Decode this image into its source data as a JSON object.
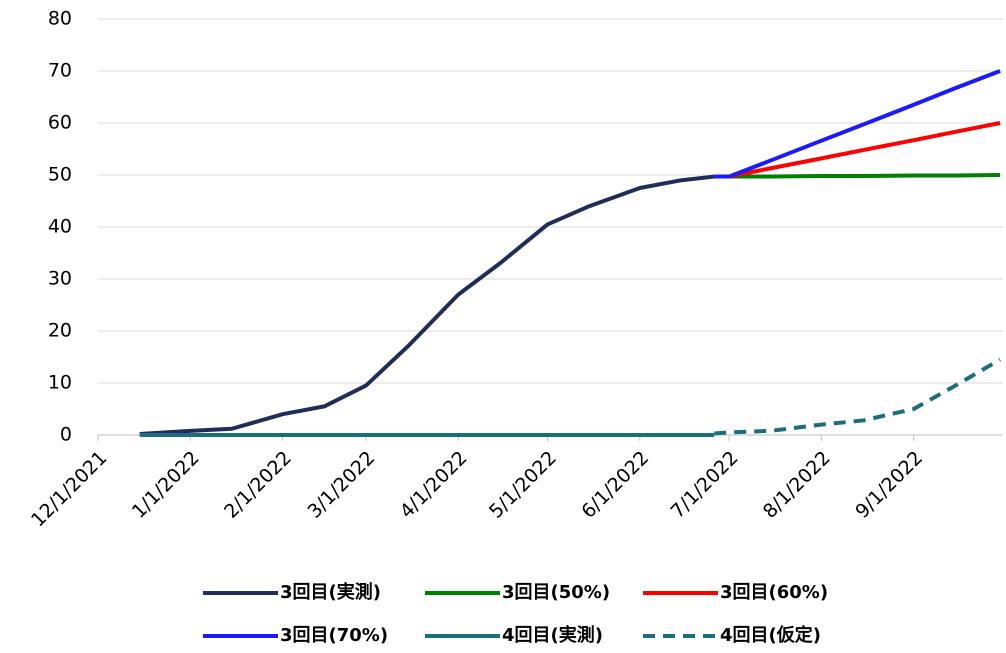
{
  "chart_data": {
    "type": "line",
    "x": [
      "12/15/2021",
      "1/1/2022",
      "1/15/2022",
      "2/1/2022",
      "2/15/2022",
      "3/1/2022",
      "3/15/2022",
      "4/1/2022",
      "4/15/2022",
      "5/1/2022",
      "5/15/2022",
      "6/1/2022",
      "6/15/2022",
      "6/26/2022",
      "7/1/2022",
      "7/15/2022",
      "8/1/2022",
      "8/15/2022",
      "9/1/2022",
      "9/15/2022",
      "9/30/2022"
    ],
    "series": [
      {
        "name": "3回目(実測)",
        "color": "#1f2d5a",
        "dashed": false,
        "values": [
          0.2,
          0.8,
          1.2,
          4,
          5.5,
          9.5,
          17,
          27,
          33,
          40.5,
          44,
          47.5,
          49,
          49.7,
          null,
          null,
          null,
          null,
          null,
          null,
          null
        ]
      },
      {
        "name": "3回目(50%)",
        "color": "#008000",
        "dashed": false,
        "values": [
          null,
          null,
          null,
          null,
          null,
          null,
          null,
          null,
          null,
          null,
          null,
          null,
          null,
          49.7,
          49.7,
          49.7,
          49.8,
          49.8,
          49.9,
          49.9,
          50
        ]
      },
      {
        "name": "3回目(60%)",
        "color": "#ff0000",
        "dashed": false,
        "values": [
          null,
          null,
          null,
          null,
          null,
          null,
          null,
          null,
          null,
          null,
          null,
          null,
          null,
          49.7,
          49.7,
          51.3,
          53.2,
          54.8,
          56.7,
          58.3,
          60
        ]
      },
      {
        "name": "3回目(70%)",
        "color": "#1a1aff",
        "dashed": false,
        "values": [
          null,
          null,
          null,
          null,
          null,
          null,
          null,
          null,
          null,
          null,
          null,
          null,
          null,
          49.7,
          49.7,
          52.8,
          56.6,
          59.7,
          63.5,
          66.7,
          70
        ]
      },
      {
        "name": "4回目(実測)",
        "color": "#1b6e7e",
        "dashed": false,
        "values": [
          0,
          0,
          0,
          0,
          0,
          0,
          0,
          0,
          0,
          0,
          0,
          0,
          0,
          0,
          null,
          null,
          null,
          null,
          null,
          null,
          null
        ]
      },
      {
        "name": "4回目(仮定)",
        "color": "#1b6e7e",
        "dashed": true,
        "values": [
          null,
          null,
          null,
          null,
          null,
          null,
          null,
          null,
          null,
          null,
          null,
          null,
          null,
          0.3,
          0.5,
          0.8,
          2,
          2.8,
          5,
          9.5,
          14.5
        ]
      }
    ],
    "xlim": [
      "12/1/2021",
      "10/1/2022"
    ],
    "xticks": [
      "12/1/2021",
      "1/1/2022",
      "2/1/2022",
      "3/1/2022",
      "4/1/2022",
      "5/1/2022",
      "6/1/2022",
      "7/1/2022",
      "8/1/2022",
      "9/1/2022"
    ],
    "ylim": [
      0,
      80
    ],
    "yticks": [
      0,
      10,
      20,
      30,
      40,
      50,
      60,
      70,
      80
    ],
    "grid": true
  }
}
